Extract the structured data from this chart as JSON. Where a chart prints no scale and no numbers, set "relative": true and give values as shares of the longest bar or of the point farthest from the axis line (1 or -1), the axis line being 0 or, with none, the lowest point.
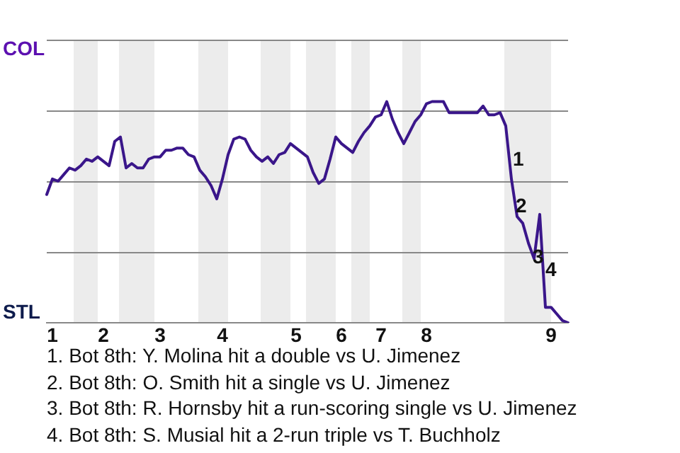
{
  "chart_data": {
    "type": "line",
    "relative": true,
    "categories": [
      null,
      "1",
      null,
      null,
      null,
      null,
      null,
      null,
      null,
      null,
      "2",
      null,
      null,
      null,
      null,
      null,
      null,
      null,
      null,
      null,
      "3",
      null,
      null,
      null,
      null,
      null,
      null,
      null,
      null,
      null,
      null,
      "4",
      null,
      null,
      null,
      null,
      null,
      null,
      null,
      null,
      null,
      null,
      null,
      null,
      "5",
      null,
      null,
      null,
      null,
      null,
      null,
      null,
      "6",
      null,
      null,
      null,
      null,
      null,
      null,
      "7",
      null,
      null,
      null,
      null,
      null,
      null,
      null,
      "8",
      null,
      null,
      null,
      null,
      null,
      null,
      null,
      null,
      null,
      null,
      null,
      null,
      null,
      null,
      null,
      null,
      null,
      null,
      null,
      null,
      null,
      "9",
      null,
      null,
      null
    ],
    "series": [
      {
        "color": "#3a168a",
        "values": [
          0.58,
          0.65,
          0.64,
          0.67,
          0.7,
          0.69,
          0.71,
          0.74,
          0.73,
          0.75,
          0.73,
          0.71,
          0.82,
          0.84,
          0.7,
          0.72,
          0.7,
          0.7,
          0.74,
          0.75,
          0.75,
          0.78,
          0.78,
          0.79,
          0.79,
          0.76,
          0.75,
          0.69,
          0.66,
          0.62,
          0.56,
          0.65,
          0.76,
          0.83,
          0.84,
          0.83,
          0.78,
          0.75,
          0.73,
          0.75,
          0.72,
          0.76,
          0.77,
          0.81,
          0.79,
          0.77,
          0.75,
          0.68,
          0.63,
          0.65,
          0.74,
          0.84,
          0.81,
          0.79,
          0.77,
          0.82,
          0.86,
          0.89,
          0.93,
          0.94,
          1,
          0.92,
          0.86,
          0.81,
          0.86,
          0.91,
          0.94,
          0.99,
          1,
          1,
          1,
          0.95,
          0.95,
          0.95,
          0.95,
          0.95,
          0.95,
          0.98,
          0.94,
          0.94,
          0.95,
          0.89,
          0.65,
          0.48,
          0.45,
          0.36,
          0.29,
          0.49,
          0.07,
          0.07,
          0.04,
          0.01,
          0
        ]
      }
    ],
    "grid": "y",
    "marker": "none",
    "line_style": "solid",
    "annotations": [
      "COL",
      "STL",
      "1",
      "2",
      "3",
      "4",
      "1. Bot 8th: Y. Molina hit a double vs U. Jimenez",
      "2. Bot 8th: O. Smith hit a single vs U. Jimenez",
      "3. Bot 8th: R. Hornsby hit a run-scoring single vs U. Jimenez",
      "4. Bot 8th: S. Musial hit a 2-run triple vs T. Buchholz"
    ]
  }
}
